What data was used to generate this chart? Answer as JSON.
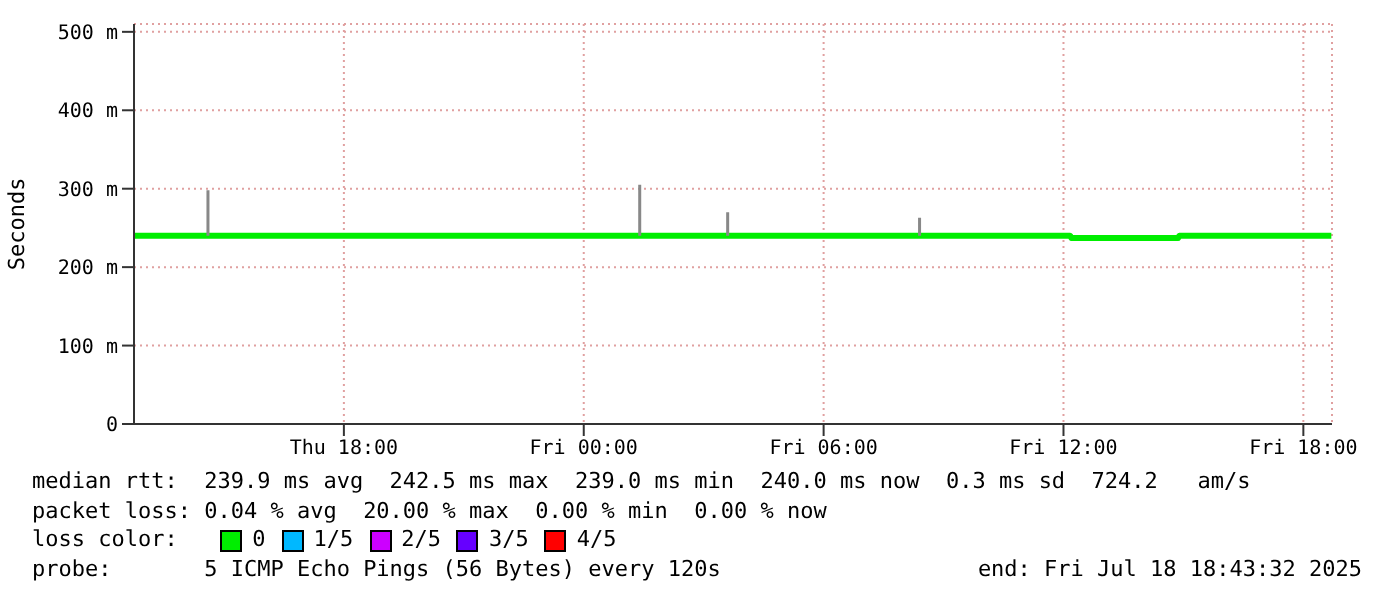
{
  "chart_data": {
    "type": "line",
    "ylabel": "Seconds",
    "legend_title": "loss color:",
    "xlim": [
      "2025-07-17T12:45",
      "2025-07-18T18:43"
    ],
    "xticks": [
      {
        "value": "2025-07-17T18:00",
        "label": "Thu 18:00"
      },
      {
        "value": "2025-07-18T00:00",
        "label": "Fri 00:00"
      },
      {
        "value": "2025-07-18T06:00",
        "label": "Fri 06:00"
      },
      {
        "value": "2025-07-18T12:00",
        "label": "Fri 12:00"
      },
      {
        "value": "2025-07-18T18:00",
        "label": "Fri 18:00"
      }
    ],
    "ylim": [
      0,
      510
    ],
    "yticks": [
      0,
      {
        "value": 100,
        "label": "100 m"
      },
      {
        "value": 200,
        "label": "200 m"
      },
      {
        "value": 300,
        "label": "300 m"
      },
      {
        "value": 400,
        "label": "400 m"
      },
      {
        "value": 500,
        "label": "500 m"
      }
    ],
    "grid": true,
    "legend": "bottom",
    "series": [
      {
        "name": "0",
        "color": "#00ee00",
        "x": [
          "2025-07-17T12:45",
          "2025-07-18T12:10",
          "2025-07-18T12:12",
          "2025-07-18T14:52",
          "2025-07-18T14:54",
          "2025-07-18T18:42"
        ],
        "values": [
          240,
          240,
          237,
          237,
          240,
          240
        ]
      },
      {
        "color": "#888888",
        "x": [
          "2025-07-17T14:36",
          "2025-07-17T14:36",
          "2025-07-17T14:37",
          "2025-07-18T01:24",
          "2025-07-18T01:24",
          "2025-07-18T01:25",
          "2025-07-18T03:36",
          "2025-07-18T03:36",
          "2025-07-18T03:37",
          "2025-07-18T08:24",
          "2025-07-18T08:24"
        ],
        "values": [
          240,
          298,
          null,
          240,
          305,
          null,
          240,
          270,
          null,
          240,
          263
        ]
      },
      {
        "name": "1/5",
        "color": "#00b8ff"
      },
      {
        "name": "2/5",
        "color": "#cc00ff"
      },
      {
        "name": "3/5",
        "color": "#6600ff"
      },
      {
        "name": "4/5",
        "color": "#ff0000"
      }
    ],
    "annotations": [
      "median rtt:  239.9 ms avg  242.5 ms max  239.0 ms min  240.0 ms now  0.3 ms sd  724.2   am/s",
      "packet loss: 0.04 % avg  20.00 % max  0.00 % min  0.00 % now",
      "probe:       5 ICMP Echo Pings (56 Bytes) every 120s",
      "end: Fri Jul 18 18:43:32 2025"
    ]
  }
}
